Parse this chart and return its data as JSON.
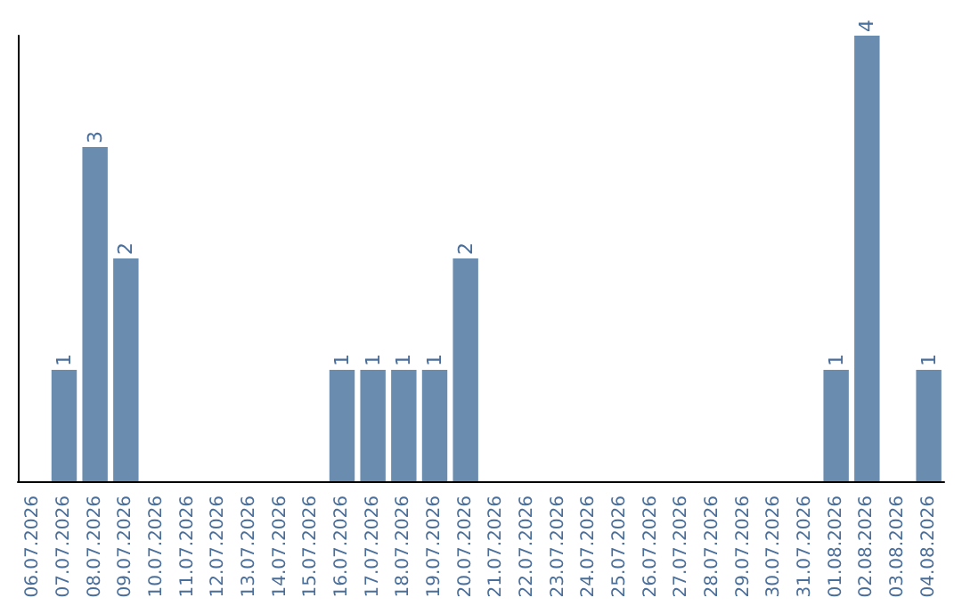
{
  "chart_data": {
    "type": "bar",
    "categories": [
      "06.07.2026",
      "07.07.2026",
      "08.07.2026",
      "09.07.2026",
      "10.07.2026",
      "11.07.2026",
      "12.07.2026",
      "13.07.2026",
      "14.07.2026",
      "15.07.2026",
      "16.07.2026",
      "17.07.2026",
      "18.07.2026",
      "19.07.2026",
      "20.07.2026",
      "21.07.2026",
      "22.07.2026",
      "23.07.2026",
      "24.07.2026",
      "25.07.2026",
      "26.07.2026",
      "27.07.2026",
      "28.07.2026",
      "29.07.2026",
      "30.07.2026",
      "31.07.2026",
      "01.08.2026",
      "02.08.2026",
      "03.08.2026",
      "04.08.2026"
    ],
    "values": [
      0,
      1,
      3,
      2,
      0,
      0,
      0,
      0,
      0,
      0,
      1,
      1,
      1,
      1,
      2,
      0,
      0,
      0,
      0,
      0,
      0,
      0,
      0,
      0,
      0,
      0,
      1,
      4,
      0,
      1
    ],
    "value_labels": [
      null,
      "1",
      "3",
      "2",
      null,
      null,
      null,
      null,
      null,
      null,
      "1",
      "1",
      "1",
      "1",
      "2",
      null,
      null,
      null,
      null,
      null,
      null,
      null,
      null,
      null,
      null,
      null,
      "1",
      "4",
      null,
      "1"
    ],
    "color": "#6a8caf",
    "tick_labels": "x"
  }
}
